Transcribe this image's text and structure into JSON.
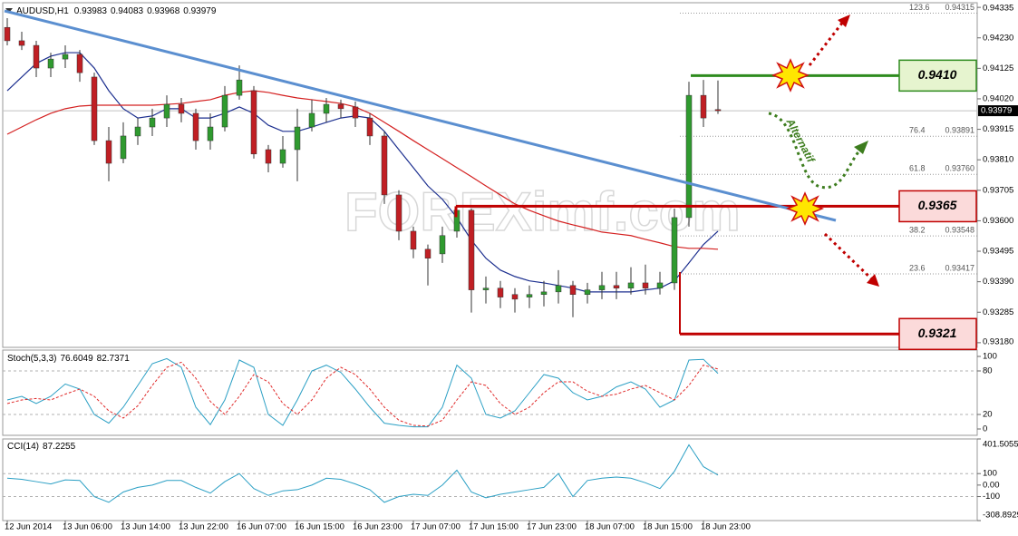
{
  "chart_data": [
    {
      "type": "candlestick",
      "title": "AUDUSD,H1",
      "categories": [
        "12 Jun 2014",
        null,
        null,
        null,
        "13 Jun 06:00",
        null,
        null,
        null,
        "13 Jun 14:00",
        null,
        null,
        null,
        "13 Jun 22:00",
        null,
        null,
        null,
        "16 Jun 07:00",
        null,
        null,
        null,
        "16 Jun 15:00",
        null,
        null,
        null,
        "16 Jun 23:00",
        null,
        null,
        null,
        "17 Jun 07:00",
        null,
        null,
        null,
        "17 Jun 15:00",
        null,
        null,
        null,
        "17 Jun 23:00",
        null,
        null,
        null,
        "18 Jun 07:00",
        null,
        null,
        null,
        "18 Jun 15:00",
        null,
        null,
        null,
        "18 Jun 23:00",
        null
      ],
      "open": [
        0.94266,
        0.9422,
        0.94204,
        0.94126,
        0.94157,
        0.94173,
        0.94095,
        0.93876,
        0.93814,
        0.93892,
        0.93923,
        0.93954,
        0.94001,
        0.9397,
        0.93876,
        0.93923,
        0.94032,
        0.94048,
        0.93845,
        0.93798,
        0.93845,
        0.93923,
        0.9397,
        0.94001,
        0.93992,
        0.93954,
        0.93892,
        0.93689,
        0.93564,
        0.93502,
        0.93486,
        0.93564,
        0.93636,
        0.93362,
        0.93368,
        0.93346,
        0.93337,
        0.93346,
        0.93355,
        0.93377,
        0.93346,
        0.93362,
        0.93377,
        0.93368,
        0.93386,
        0.93368,
        0.93386,
        0.93611,
        0.94032,
        0.93983
      ],
      "high": [
        0.94298,
        0.94251,
        0.9422,
        0.94179,
        0.94204,
        0.94188,
        0.9411,
        0.93923,
        0.93939,
        0.93954,
        0.93986,
        0.94032,
        0.94023,
        0.93986,
        0.9397,
        0.94064,
        0.94135,
        0.94064,
        0.93861,
        0.93892,
        0.93986,
        0.94017,
        0.94023,
        0.94017,
        0.94011,
        0.9397,
        0.93908,
        0.93705,
        0.9358,
        0.93518,
        0.9358,
        0.93649,
        0.93642,
        0.93408,
        0.93393,
        0.93368,
        0.93377,
        0.93393,
        0.9343,
        0.93393,
        0.93386,
        0.93424,
        0.93424,
        0.9344,
        0.93449,
        0.93424,
        0.93642,
        0.94079,
        0.94085,
        0.94083
      ],
      "low": [
        0.94204,
        0.94188,
        0.94095,
        0.94095,
        0.94126,
        0.94079,
        0.93861,
        0.93736,
        0.93798,
        0.93861,
        0.93892,
        0.93923,
        0.93939,
        0.93845,
        0.93845,
        0.93908,
        0.94017,
        0.93814,
        0.93767,
        0.93783,
        0.93736,
        0.93908,
        0.93939,
        0.93954,
        0.93923,
        0.93861,
        0.93658,
        0.93533,
        0.93471,
        0.93377,
        0.93455,
        0.93542,
        0.93284,
        0.93315,
        0.93299,
        0.93284,
        0.93299,
        0.93305,
        0.93315,
        0.93268,
        0.93315,
        0.9333,
        0.9333,
        0.93346,
        0.93346,
        0.93346,
        0.93362,
        0.9358,
        0.93923,
        0.93968
      ],
      "close": [
        0.9422,
        0.94204,
        0.94126,
        0.94157,
        0.94173,
        0.9411,
        0.93876,
        0.93798,
        0.93892,
        0.93923,
        0.93954,
        0.94001,
        0.9397,
        0.93876,
        0.93923,
        0.94032,
        0.94085,
        0.9383,
        0.93798,
        0.93845,
        0.93923,
        0.9397,
        0.94001,
        0.93986,
        0.93954,
        0.93892,
        0.93689,
        0.93564,
        0.93502,
        0.93471,
        0.93549,
        0.93636,
        0.93362,
        0.93368,
        0.93337,
        0.9333,
        0.93346,
        0.93355,
        0.93377,
        0.93346,
        0.93362,
        0.93377,
        0.93368,
        0.93386,
        0.93368,
        0.93386,
        0.93611,
        0.94032,
        0.93954,
        0.93979
      ],
      "colors": {
        "up": "#2f9a2f",
        "down": "#c01f24"
      },
      "overlays": [
        {
          "color": "#1c2f8f",
          "values": [
            0.94048,
            0.94095,
            0.94142,
            0.94167,
            0.94179,
            0.94179,
            0.94126,
            0.94048,
            0.93986,
            0.93954,
            0.93961,
            0.93986,
            0.93986,
            0.93954,
            0.93954,
            0.9397,
            0.93992,
            0.9397,
            0.93929,
            0.93908,
            0.93908,
            0.93923,
            0.93939,
            0.93954,
            0.93961,
            0.93954,
            0.93908,
            0.93845,
            0.93783,
            0.9372,
            0.93674,
            0.93611,
            0.93533,
            0.93471,
            0.9343,
            0.93408,
            0.93393,
            0.93386,
            0.93377,
            0.93368,
            0.93355,
            0.93355,
            0.93355,
            0.93355,
            0.93362,
            0.93368,
            0.93393,
            0.93455,
            0.93518,
            0.93564
          ]
        },
        {
          "color": "#d42020",
          "values": [
            0.93898,
            0.93923,
            0.93948,
            0.9397,
            0.93986,
            0.93995,
            0.93998,
            0.93998,
            0.93998,
            0.93998,
            0.93998,
            0.94001,
            0.94004,
            0.94011,
            0.94017,
            0.94032,
            0.94042,
            0.94048,
            0.94042,
            0.94032,
            0.94023,
            0.94017,
            0.94011,
            0.94004,
            0.93992,
            0.9397,
            0.93939,
            0.93908,
            0.93876,
            0.93845,
            0.93814,
            0.93783,
            0.93752,
            0.9372,
            0.93689,
            0.93658,
            0.93636,
            0.93617,
            0.93599,
            0.93586,
            0.93574,
            0.93561,
            0.93555,
            0.93549,
            0.93536,
            0.93524,
            0.93511,
            0.93505,
            0.93505,
            0.93502
          ]
        }
      ],
      "ylim": [
        0.93164,
        0.94351
      ],
      "yticks": [
        {
          "value": 0.94335,
          "label": "0.94335"
        },
        {
          "value": 0.9423,
          "label": "0.94230"
        },
        {
          "value": 0.94125,
          "label": "0.94125"
        },
        {
          "value": 0.9402,
          "label": "0.94020"
        },
        {
          "value": 0.93915,
          "label": "0.93915"
        },
        {
          "value": 0.9381,
          "label": "0.93810"
        },
        {
          "value": 0.93705,
          "label": "0.93705"
        },
        {
          "value": 0.936,
          "label": "0.93600"
        },
        {
          "value": 0.93495,
          "label": "0.93495"
        },
        {
          "value": 0.9339,
          "label": "0.93390"
        },
        {
          "value": 0.93285,
          "label": "0.93285"
        },
        {
          "value": 0.9318,
          "label": "0.93180"
        }
      ],
      "fibs": [
        {
          "level": 123.6,
          "price": {
            "value": 0.94315,
            "label": "0.94315"
          }
        },
        {
          "level": 76.4,
          "price": {
            "value": 0.93891,
            "label": "0.93891"
          }
        },
        {
          "level": 61.8,
          "price": {
            "value": 0.9376,
            "label": "0.93760"
          }
        },
        {
          "level": 38.2,
          "price": {
            "value": 0.93548,
            "label": "0.93548"
          }
        },
        {
          "level": 23.6,
          "price": {
            "value": 0.93417,
            "label": "0.93417"
          }
        }
      ],
      "levels": [
        {
          "value": 0.941,
          "label": "0.9410",
          "color": "#2e8b1e",
          "fill": "#e6f4cf"
        },
        {
          "value": 0.9365,
          "label": "0.9365",
          "color": "#c00000",
          "fill": "#fbdada"
        },
        {
          "value": 0.9321,
          "label": "0.9321",
          "color": "#c00000",
          "fill": "#fbdada"
        }
      ],
      "annotation": "Alternatif",
      "watermark": "FOREXimf.com"
    },
    {
      "type": "line",
      "title": "Stoch(5,3,3)",
      "lines": [
        {
          "color": "#2a9fc4",
          "dashed": false,
          "values": [
            40,
            45,
            35,
            45,
            62,
            55,
            20,
            8,
            30,
            60,
            90,
            97,
            85,
            30,
            6,
            40,
            95,
            85,
            20,
            5,
            40,
            80,
            88,
            78,
            55,
            30,
            8,
            5,
            3,
            3,
            30,
            88,
            70,
            20,
            15,
            25,
            50,
            75,
            70,
            50,
            40,
            45,
            58,
            65,
            55,
            30,
            40,
            95,
            96,
            76.6049
          ]
        },
        {
          "color": "#e02a2a",
          "dashed": true,
          "values": [
            35,
            40,
            42,
            40,
            48,
            55,
            45,
            25,
            15,
            32,
            60,
            85,
            92,
            70,
            38,
            20,
            45,
            75,
            65,
            35,
            20,
            40,
            70,
            85,
            75,
            55,
            30,
            12,
            5,
            4,
            12,
            40,
            65,
            60,
            35,
            20,
            30,
            50,
            65,
            65,
            52,
            45,
            48,
            55,
            60,
            50,
            40,
            60,
            88,
            82.7371
          ]
        }
      ],
      "ylim": [
        -8.75,
        108.75
      ],
      "yticks": [
        100,
        80,
        20,
        0
      ],
      "levels": [
        80,
        20
      ]
    },
    {
      "type": "line",
      "title": "CCI(14)",
      "lines": [
        {
          "color": "#2a9fc4",
          "dashed": false,
          "values": [
            60,
            50,
            30,
            10,
            45,
            40,
            -100,
            -150,
            -60,
            -20,
            0,
            40,
            40,
            -20,
            -70,
            30,
            100,
            -30,
            -90,
            -50,
            -40,
            0,
            60,
            50,
            10,
            -40,
            -150,
            -100,
            -80,
            -90,
            0,
            130,
            -60,
            -110,
            -80,
            -60,
            -40,
            -20,
            100,
            -100,
            40,
            60,
            70,
            60,
            20,
            -30,
            120,
            350,
            160,
            87.2255
          ]
        }
      ],
      "ylim": [
        -308.8929,
        401.5055
      ],
      "yticks": [
        401.5055,
        100,
        {
          "value": 0,
          "label": "0.00"
        },
        -100,
        -308.8929
      ],
      "levels": [
        100,
        -100
      ]
    }
  ]
}
